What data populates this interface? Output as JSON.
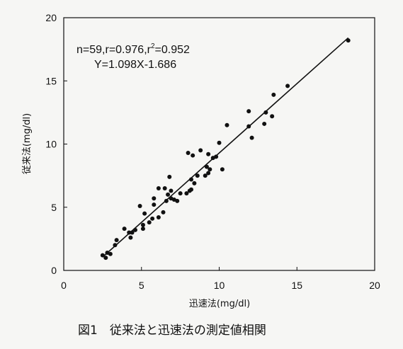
{
  "chart_data": {
    "type": "scatter",
    "title": "",
    "xlabel": "迅速法(mg/dl)",
    "ylabel": "従来法(mg/dl)",
    "xlim": [
      0,
      20
    ],
    "ylim": [
      0,
      20
    ],
    "xticks": [
      "0",
      "5",
      "10",
      "15",
      "20"
    ],
    "yticks": [
      "0",
      "5",
      "10",
      "15",
      "20"
    ],
    "grid": false,
    "annotation_line1": "n=59,r=0.976,r",
    "annotation_sup": "2",
    "annotation_line1_tail": "=0.952",
    "annotation_line2": "Y=1.098X-1.686",
    "regression": {
      "slope": 1.098,
      "intercept": -1.686,
      "x_range": [
        2.6,
        18.3
      ]
    },
    "caption": "図1　従来法と迅速法の測定値相関",
    "points": [
      [
        2.5,
        1.2
      ],
      [
        2.7,
        1.0
      ],
      [
        2.8,
        1.4
      ],
      [
        3.0,
        1.3
      ],
      [
        3.3,
        2.0
      ],
      [
        3.4,
        2.4
      ],
      [
        3.9,
        3.3
      ],
      [
        4.2,
        3.0
      ],
      [
        4.3,
        2.6
      ],
      [
        4.4,
        3.0
      ],
      [
        4.6,
        3.2
      ],
      [
        4.9,
        5.1
      ],
      [
        5.1,
        3.3
      ],
      [
        5.1,
        3.6
      ],
      [
        5.2,
        4.5
      ],
      [
        5.5,
        3.8
      ],
      [
        5.7,
        4.1
      ],
      [
        5.8,
        5.2
      ],
      [
        5.8,
        5.7
      ],
      [
        6.1,
        4.2
      ],
      [
        6.1,
        6.5
      ],
      [
        6.4,
        4.6
      ],
      [
        6.5,
        6.5
      ],
      [
        6.6,
        5.5
      ],
      [
        6.7,
        6.0
      ],
      [
        6.8,
        7.4
      ],
      [
        6.9,
        6.3
      ],
      [
        6.9,
        5.7
      ],
      [
        7.1,
        5.6
      ],
      [
        7.3,
        5.5
      ],
      [
        7.5,
        6.1
      ],
      [
        7.9,
        6.1
      ],
      [
        8.0,
        9.3
      ],
      [
        8.1,
        6.3
      ],
      [
        8.2,
        6.4
      ],
      [
        8.2,
        7.2
      ],
      [
        8.3,
        9.1
      ],
      [
        8.4,
        6.9
      ],
      [
        8.6,
        7.5
      ],
      [
        8.8,
        9.5
      ],
      [
        9.1,
        7.5
      ],
      [
        9.2,
        8.2
      ],
      [
        9.3,
        7.7
      ],
      [
        9.3,
        9.2
      ],
      [
        9.4,
        8.0
      ],
      [
        9.6,
        8.9
      ],
      [
        9.8,
        9.0
      ],
      [
        10.0,
        10.1
      ],
      [
        10.2,
        8.0
      ],
      [
        10.5,
        11.5
      ],
      [
        11.9,
        12.6
      ],
      [
        11.9,
        11.4
      ],
      [
        12.1,
        10.5
      ],
      [
        12.9,
        11.6
      ],
      [
        13.0,
        12.5
      ],
      [
        13.4,
        12.2
      ],
      [
        13.5,
        13.9
      ],
      [
        14.4,
        14.6
      ],
      [
        18.3,
        18.2
      ]
    ]
  }
}
